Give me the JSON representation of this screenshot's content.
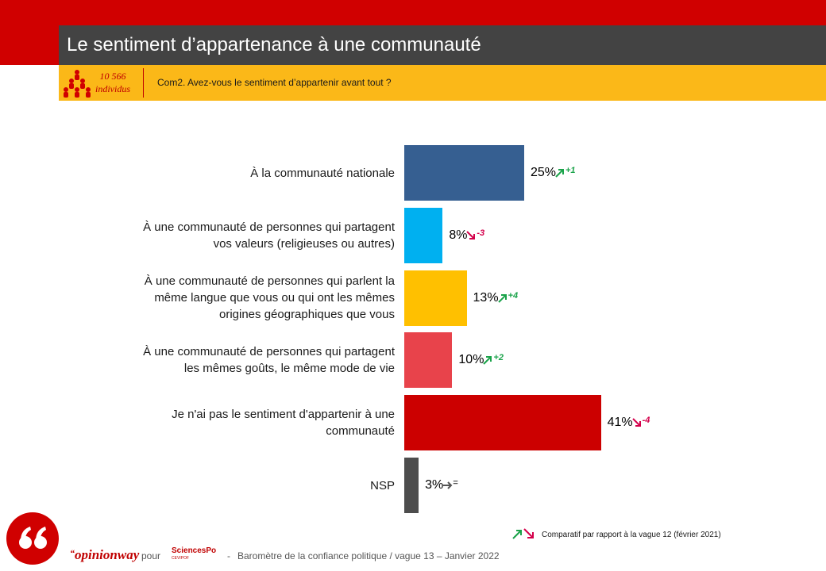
{
  "header": {
    "title": "Le sentiment d’appartenance à une communauté",
    "sample_count": "10 566",
    "sample_unit": "individus",
    "question": "Com2. Avez-vous le sentiment d’appartenir avant tout ?"
  },
  "colors": {
    "top_band": "#d00000",
    "title_bg": "#434343",
    "question_bg": "#fbb818",
    "up": "#1aa34a",
    "down": "#d4004b",
    "stable": "#555555"
  },
  "chart_data": {
    "type": "bar",
    "orientation": "horizontal",
    "title": "",
    "xlabel": "",
    "ylabel": "",
    "xlim": [
      0,
      45
    ],
    "categories": [
      "À la communauté nationale",
      "À une communauté de personnes qui partagent vos valeurs (religieuses ou autres)",
      "À une communauté de personnes qui parlent la même langue que vous ou qui ont les mêmes origines géographiques que vous",
      "À une communauté de personnes qui partagent les mêmes goûts, le même mode de vie",
      "Je n'ai pas le sentiment d'appartenir à une communauté",
      "NSP"
    ],
    "category_lines": [
      [
        "À la communauté nationale"
      ],
      [
        "À une communauté de personnes qui partagent",
        "vos valeurs (religieuses ou autres)"
      ],
      [
        "À une communauté de personnes qui parlent la",
        "même langue que vous ou qui ont les mêmes",
        "origines géographiques que vous"
      ],
      [
        "À une communauté de personnes qui partagent",
        "les mêmes goûts, le même mode de vie"
      ],
      [
        "Je n'ai pas le sentiment d'appartenir à une",
        "communauté"
      ],
      [
        "NSP"
      ]
    ],
    "values": [
      25,
      8,
      13,
      10,
      41,
      3
    ],
    "value_labels": [
      "25%",
      "8%",
      "13%",
      "10%",
      "41%",
      "3%"
    ],
    "bar_colors": [
      "#365f91",
      "#00b0f0",
      "#ffc000",
      "#e8434b",
      "#cc0000",
      "#4d4d4d"
    ],
    "changes": [
      "+1",
      "-3",
      "+4",
      "+2",
      "-4",
      "="
    ],
    "trends": [
      "up",
      "down",
      "up",
      "up",
      "down",
      "stable"
    ],
    "legend": "Comparatif par rapport à la vague 12 (février 2021)"
  },
  "footer": {
    "brand": "opinionway",
    "pour": "pour",
    "partner": "SciencesPo",
    "partner_sub": "CEVIPOF",
    "separator": "-",
    "survey": "Baromètre de la confiance politique / vague 13 – Janvier 2022"
  }
}
